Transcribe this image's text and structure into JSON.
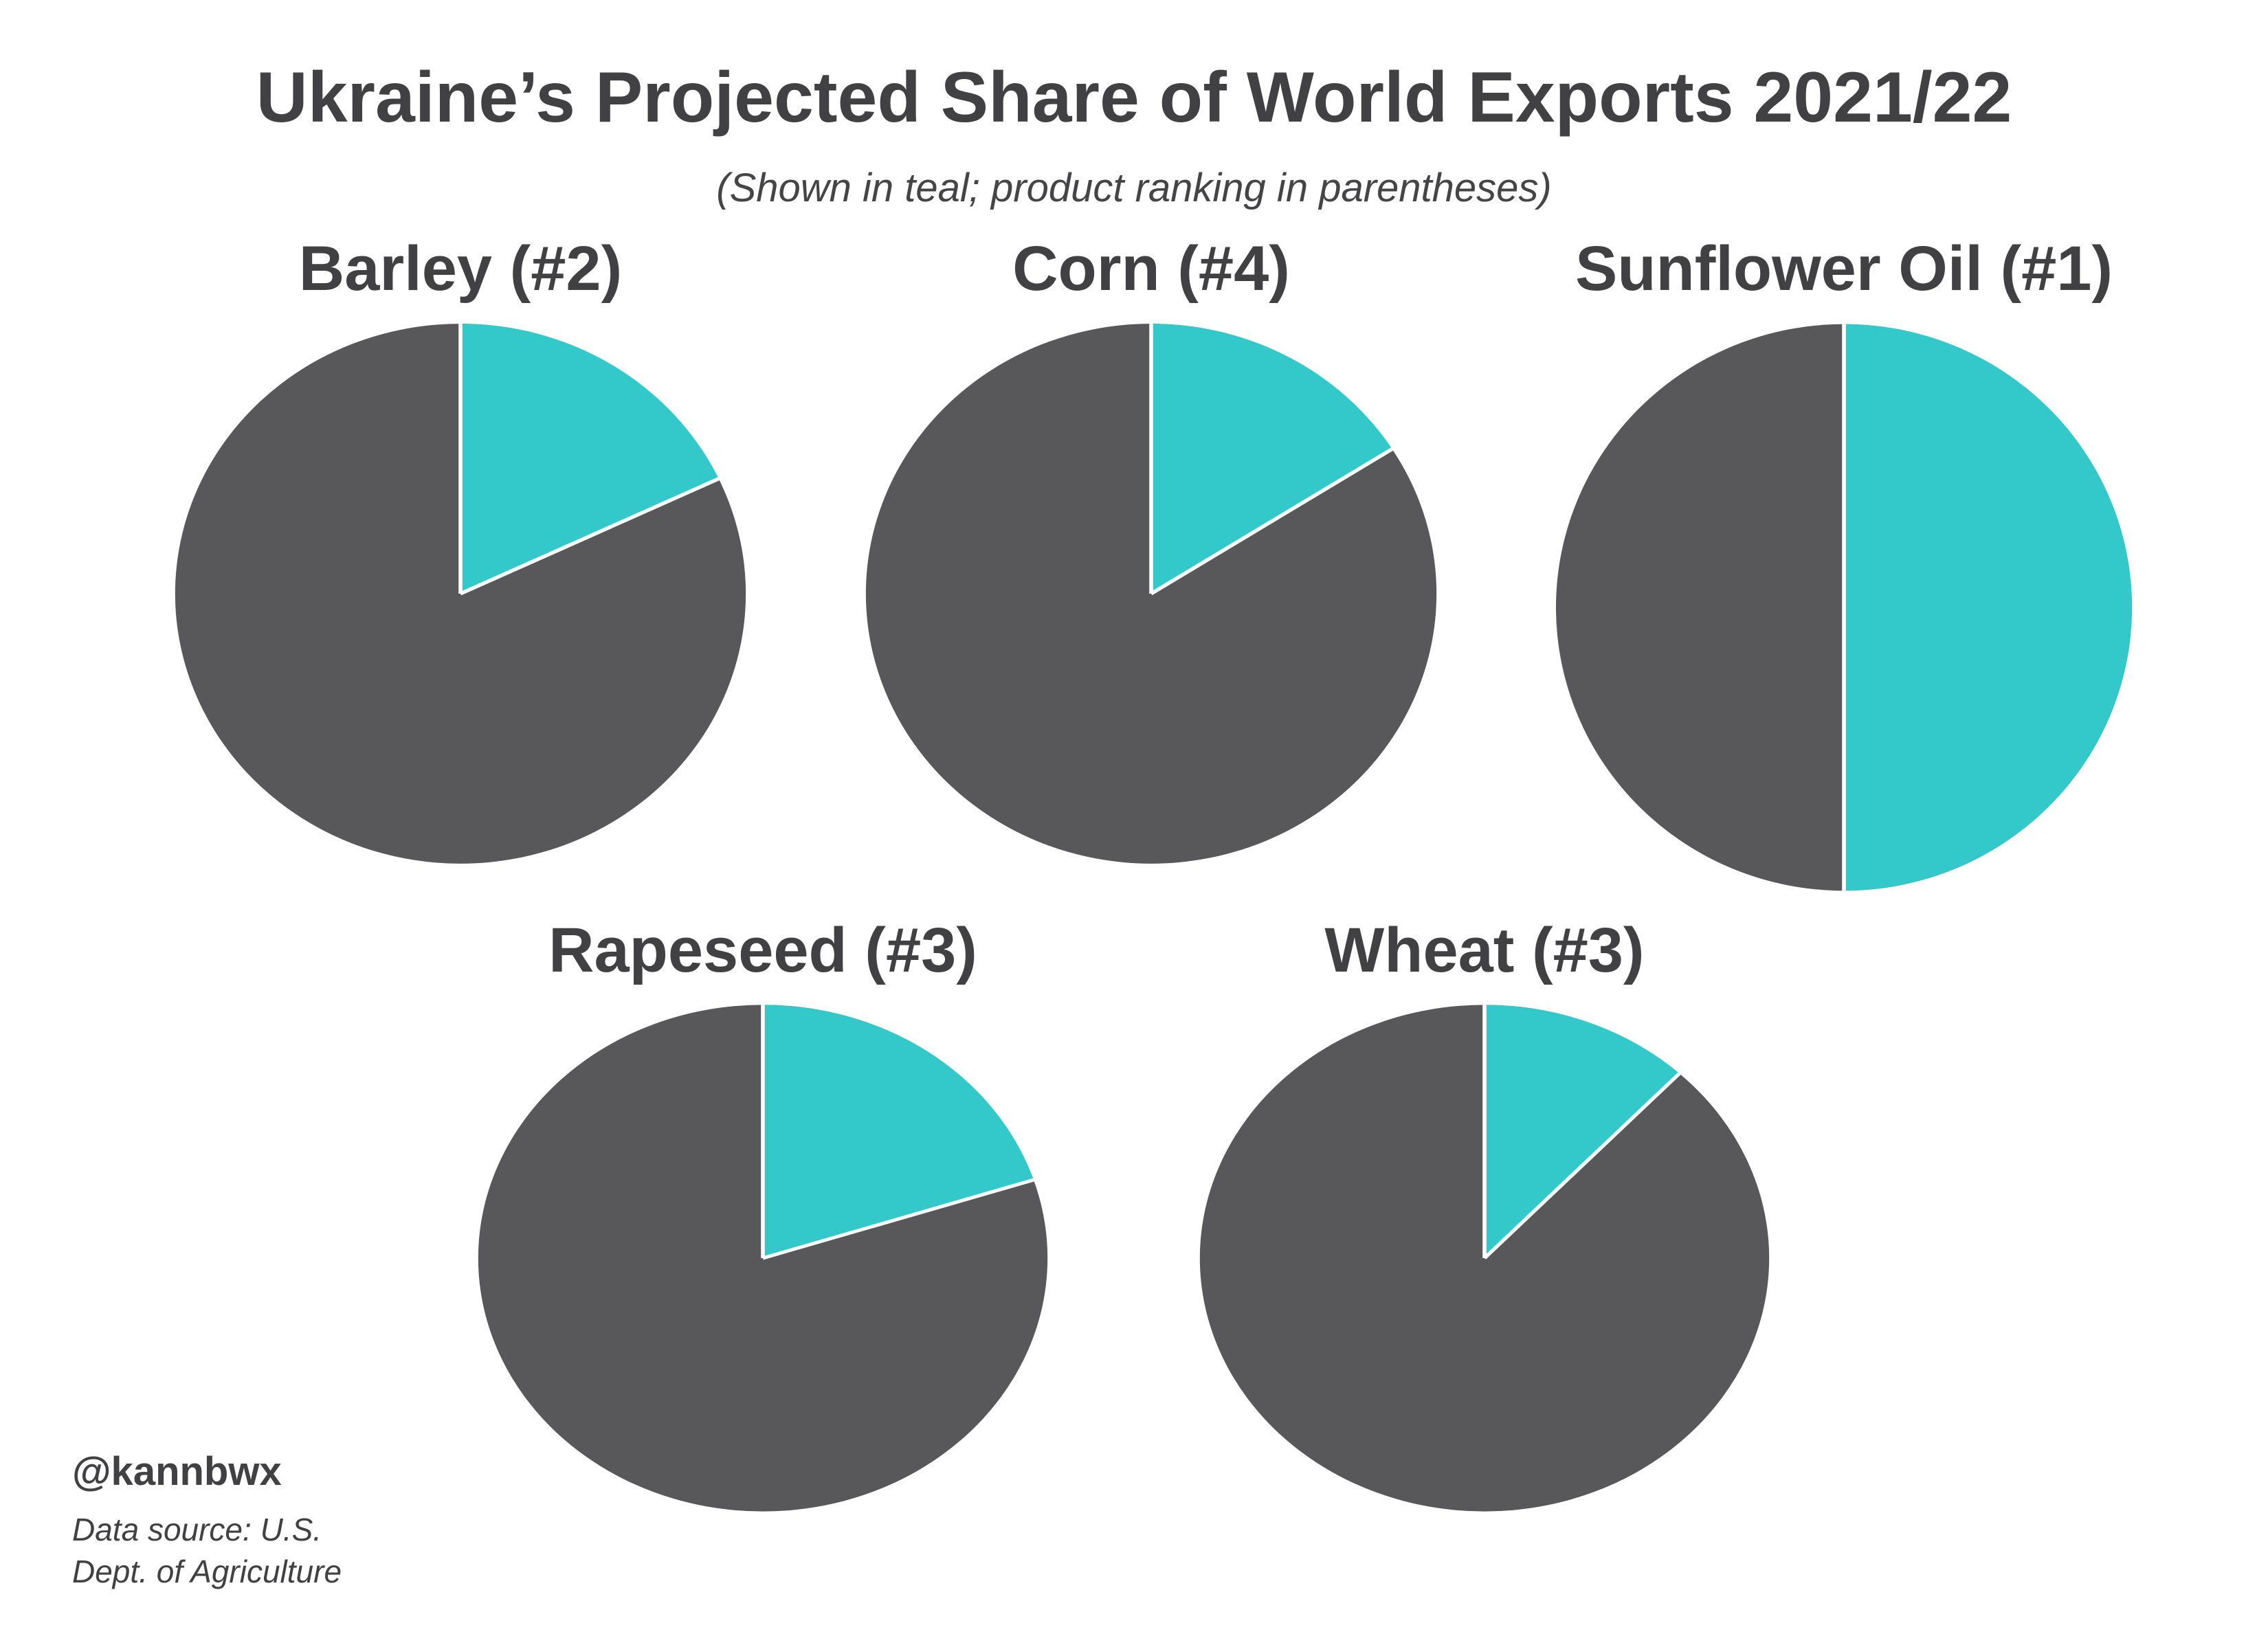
{
  "title": "Ukraine’s Projected Share of World Exports 2021/22",
  "subtitle": "(Shown in teal; product ranking in parentheses)",
  "credit": "@kannbwx",
  "source": {
    "line1": "Data source: U.S.",
    "line2": "Dept. of Agriculture"
  },
  "colors": {
    "teal": "#33C9CB",
    "gray": "#58585A",
    "divider": "#FFFFFF",
    "text": "#414042",
    "background": "#FFFFFF"
  },
  "chart_data": [
    {
      "type": "pie",
      "title": "Barley (#2)",
      "product": "Barley",
      "ukraine_export_rank": "#2",
      "start_angle": "12-oclock",
      "direction": "clockwise",
      "slices": [
        {
          "label": "Ukraine share (teal)",
          "value": 18,
          "color_key": "teal"
        },
        {
          "label": "Rest of world",
          "value": 82,
          "color_key": "gray"
        }
      ]
    },
    {
      "type": "pie",
      "title": "Corn (#4)",
      "product": "Corn",
      "ukraine_export_rank": "#4",
      "start_angle": "12-oclock",
      "direction": "clockwise",
      "slices": [
        {
          "label": "Ukraine share (teal)",
          "value": 16,
          "color_key": "teal"
        },
        {
          "label": "Rest of world",
          "value": 84,
          "color_key": "gray"
        }
      ]
    },
    {
      "type": "pie",
      "title": "Sunflower Oil (#1)",
      "product": "Sunflower Oil",
      "ukraine_export_rank": "#1",
      "start_angle": "12-oclock",
      "direction": "clockwise",
      "slices": [
        {
          "label": "Ukraine share (teal)",
          "value": 50,
          "color_key": "teal"
        },
        {
          "label": "Rest of world",
          "value": 50,
          "color_key": "gray"
        }
      ]
    },
    {
      "type": "pie",
      "title": "Rapeseed (#3)",
      "product": "Rapeseed",
      "ukraine_export_rank": "#3",
      "start_angle": "12-oclock",
      "direction": "clockwise",
      "slices": [
        {
          "label": "Ukraine share (teal)",
          "value": 20,
          "color_key": "teal"
        },
        {
          "label": "Rest of world",
          "value": 80,
          "color_key": "gray"
        }
      ]
    },
    {
      "type": "pie",
      "title": "Wheat (#3)",
      "product": "Wheat",
      "ukraine_export_rank": "#3",
      "start_angle": "12-oclock",
      "direction": "clockwise",
      "slices": [
        {
          "label": "Ukraine share (teal)",
          "value": 12,
          "color_key": "teal"
        },
        {
          "label": "Rest of world",
          "value": 88,
          "color_key": "gray"
        }
      ]
    }
  ]
}
